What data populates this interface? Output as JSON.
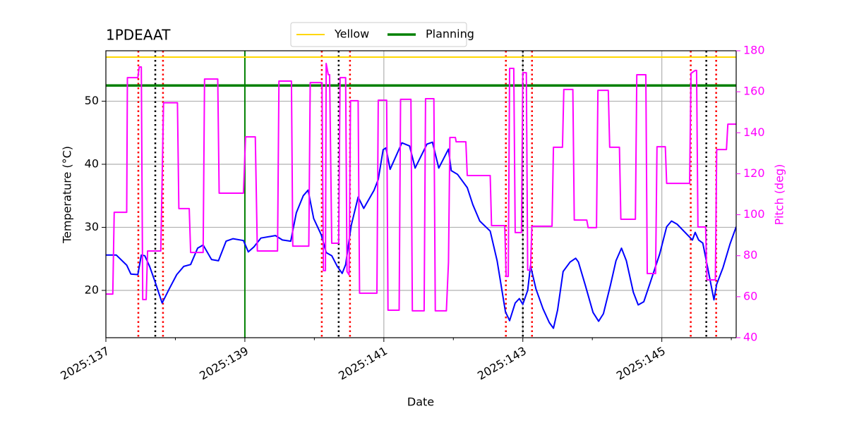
{
  "chart_data": {
    "type": "line",
    "title": "1PDEAAT",
    "xlabel": "Date",
    "ylabel": "Temperature (°C)",
    "y2label": "Pitch (deg)",
    "y2color": "magenta",
    "xlim": [
      137,
      146.07
    ],
    "xticks": [
      {
        "value": 137,
        "label": "2025:137"
      },
      {
        "value": 139,
        "label": "2025:139"
      },
      {
        "value": 141,
        "label": "2025:141"
      },
      {
        "value": 143,
        "label": "2025:143"
      },
      {
        "value": 145,
        "label": "2025:145"
      }
    ],
    "xminorticks": [
      138,
      140,
      142,
      144,
      146
    ],
    "ylim": [
      12.5,
      58
    ],
    "yticks": [
      20,
      30,
      40,
      50
    ],
    "y2lim": [
      40,
      180
    ],
    "y2ticks": [
      40,
      60,
      80,
      100,
      120,
      140,
      160,
      180
    ],
    "grid": true,
    "legend": "upper center",
    "hlines": [
      {
        "name": "Yellow",
        "color": "gold",
        "value": 57
      },
      {
        "name": "Planning",
        "color": "green",
        "value": 52.5
      }
    ],
    "vlines": [
      {
        "color": "green",
        "style": "solid",
        "values": [
          139
        ]
      },
      {
        "color": "red",
        "style": "dotted",
        "values": [
          137.467,
          137.822,
          140.107,
          140.513,
          142.756,
          143.132,
          145.416,
          145.782
        ]
      },
      {
        "color": "black",
        "style": "dotted",
        "values": [
          137.711,
          140.35,
          143.0,
          145.64
        ]
      }
    ],
    "series": [
      {
        "color": "blue",
        "x": [
          137.0,
          137.15,
          137.3,
          137.36,
          137.46,
          137.51,
          137.56,
          137.63,
          137.71,
          137.81,
          137.91,
          138.02,
          138.12,
          138.22,
          138.32,
          138.4,
          138.52,
          138.62,
          138.73,
          138.83,
          138.98,
          139.05,
          139.13,
          139.23,
          139.44,
          139.54,
          139.66,
          139.74,
          139.84,
          139.91,
          139.99,
          140.1,
          140.17,
          140.25,
          140.33,
          140.4,
          140.45,
          140.53,
          140.63,
          140.71,
          140.86,
          140.92,
          140.99,
          141.03,
          141.09,
          141.26,
          141.37,
          141.45,
          141.62,
          141.7,
          141.79,
          141.93,
          141.97,
          142.06,
          142.2,
          142.28,
          142.38,
          142.53,
          142.63,
          142.75,
          142.81,
          142.89,
          142.95,
          143.0,
          143.07,
          143.11,
          143.19,
          143.29,
          143.38,
          143.44,
          143.5,
          143.58,
          143.68,
          143.76,
          143.8,
          143.9,
          144.01,
          144.09,
          144.16,
          144.26,
          144.34,
          144.42,
          144.49,
          144.59,
          144.66,
          144.74,
          144.82,
          144.97,
          145.07,
          145.14,
          145.22,
          145.44,
          145.48,
          145.53,
          145.59,
          145.66,
          145.75,
          145.79,
          145.88,
          145.98,
          146.07
        ],
        "values": [
          25.6,
          25.6,
          24.0,
          22.6,
          22.5,
          25.6,
          25.5,
          23.8,
          21.3,
          18.0,
          20.2,
          22.5,
          23.8,
          24.1,
          26.7,
          27.2,
          24.9,
          24.7,
          27.8,
          28.2,
          27.9,
          26.1,
          26.9,
          28.3,
          28.7,
          28.0,
          27.8,
          32.3,
          35.0,
          35.9,
          31.4,
          28.8,
          26.0,
          25.5,
          23.8,
          22.7,
          24.1,
          30.3,
          34.8,
          33.0,
          35.9,
          37.6,
          42.3,
          42.6,
          39.2,
          43.4,
          42.9,
          39.4,
          43.2,
          43.5,
          39.4,
          42.4,
          39.0,
          38.4,
          36.3,
          33.6,
          31.0,
          29.4,
          24.7,
          16.6,
          15.2,
          18.0,
          18.7,
          17.8,
          20.0,
          23.9,
          20.2,
          17.1,
          14.9,
          14.0,
          16.9,
          23.0,
          24.5,
          25.1,
          24.5,
          20.8,
          16.5,
          15.1,
          16.3,
          20.8,
          24.7,
          26.7,
          24.7,
          19.7,
          17.7,
          18.2,
          20.8,
          25.8,
          30.1,
          31.0,
          30.5,
          28.0,
          29.2,
          28.0,
          27.5,
          23.6,
          18.5,
          21.0,
          23.6,
          27.3,
          30.1
        ]
      },
      {
        "color": "magenta",
        "axis": "y2",
        "x": [
          137.0,
          137.1,
          137.12,
          137.3,
          137.31,
          137.46,
          137.48,
          137.51,
          137.53,
          137.58,
          137.6,
          137.79,
          137.83,
          138.03,
          138.05,
          138.2,
          138.22,
          138.4,
          138.42,
          138.61,
          138.63,
          138.98,
          139.01,
          139.15,
          139.18,
          139.47,
          139.49,
          139.67,
          139.69,
          139.92,
          139.94,
          140.11,
          140.13,
          140.16,
          140.17,
          140.2,
          140.22,
          140.25,
          140.35,
          140.37,
          140.45,
          140.47,
          140.5,
          140.52,
          140.63,
          140.65,
          140.9,
          140.92,
          141.04,
          141.06,
          141.22,
          141.24,
          141.39,
          141.41,
          141.58,
          141.6,
          141.72,
          141.74,
          141.9,
          141.93,
          141.95,
          142.03,
          142.04,
          142.18,
          142.2,
          142.53,
          142.55,
          142.74,
          142.76,
          142.79,
          142.81,
          142.87,
          142.89,
          142.98,
          143.0,
          143.05,
          143.07,
          143.11,
          143.13,
          143.42,
          143.44,
          143.57,
          143.59,
          143.72,
          143.74,
          143.92,
          143.94,
          144.06,
          144.08,
          144.23,
          144.25,
          144.39,
          144.41,
          144.62,
          144.64,
          144.77,
          144.79,
          144.91,
          144.93,
          145.05,
          145.07,
          145.4,
          145.42,
          145.48,
          145.5,
          145.52,
          145.63,
          145.65,
          145.77,
          145.79,
          145.93,
          145.95,
          146.07
        ],
        "values": [
          61.3,
          61.3,
          101.2,
          101.2,
          166.9,
          166.9,
          172.1,
          172.1,
          58.6,
          58.6,
          82.3,
          82.3,
          154.6,
          154.6,
          103.0,
          103.0,
          81.6,
          81.6,
          166.2,
          166.2,
          110.5,
          110.5,
          138.0,
          138.0,
          82.3,
          82.3,
          165.2,
          165.2,
          84.7,
          84.7,
          164.5,
          164.5,
          72.7,
          72.7,
          173.8,
          168.3,
          168.3,
          86.1,
          86.1,
          166.9,
          166.9,
          72.3,
          70.6,
          155.6,
          155.6,
          61.7,
          61.7,
          155.9,
          155.9,
          53.4,
          53.4,
          156.3,
          156.3,
          53.1,
          53.1,
          156.6,
          156.6,
          53.1,
          53.1,
          76.8,
          137.7,
          137.7,
          135.6,
          135.6,
          119.1,
          119.1,
          94.7,
          94.7,
          69.9,
          69.9,
          171.4,
          171.4,
          91.3,
          91.3,
          169.3,
          169.3,
          73.0,
          73.0,
          94.4,
          94.4,
          132.9,
          132.9,
          161.1,
          161.1,
          97.4,
          97.4,
          93.7,
          93.7,
          160.7,
          160.7,
          132.9,
          132.9,
          97.8,
          97.8,
          168.3,
          168.3,
          71.3,
          71.3,
          133.2,
          133.2,
          115.3,
          115.3,
          169.0,
          170.4,
          170.4,
          94.0,
          94.0,
          68.2,
          68.2,
          131.8,
          131.8,
          144.2,
          144.2
        ]
      }
    ]
  }
}
